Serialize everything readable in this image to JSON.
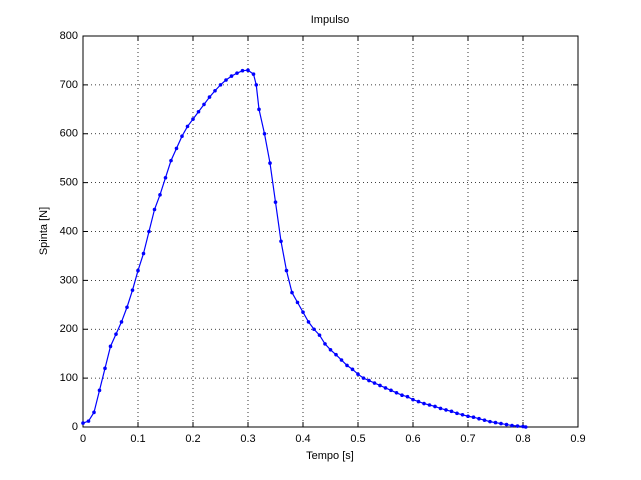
{
  "chart_data": {
    "type": "line",
    "title": "Impulso",
    "x_label": "Tempo [s]",
    "y_label": "Spinta [N]",
    "x": [
      0,
      0.01,
      0.02,
      0.03,
      0.04,
      0.05,
      0.06,
      0.07,
      0.08,
      0.09,
      0.1,
      0.11,
      0.12,
      0.13,
      0.14,
      0.15,
      0.16,
      0.17,
      0.18,
      0.19,
      0.2,
      0.21,
      0.22,
      0.23,
      0.24,
      0.25,
      0.26,
      0.27,
      0.28,
      0.29,
      0.3,
      0.31,
      0.315,
      0.32,
      0.33,
      0.34,
      0.35,
      0.36,
      0.37,
      0.38,
      0.39,
      0.4,
      0.41,
      0.42,
      0.43,
      0.44,
      0.45,
      0.46,
      0.47,
      0.48,
      0.49,
      0.5,
      0.51,
      0.52,
      0.53,
      0.54,
      0.55,
      0.56,
      0.57,
      0.58,
      0.59,
      0.6,
      0.61,
      0.62,
      0.63,
      0.64,
      0.65,
      0.66,
      0.67,
      0.68,
      0.69,
      0.7,
      0.71,
      0.72,
      0.73,
      0.74,
      0.75,
      0.76,
      0.77,
      0.78,
      0.79,
      0.8,
      0.805
    ],
    "series": [
      {
        "name": "Spinta",
        "color": "#0000ff",
        "values": [
          8,
          12,
          30,
          75,
          120,
          165,
          190,
          215,
          245,
          280,
          320,
          355,
          400,
          445,
          475,
          510,
          545,
          570,
          595,
          615,
          630,
          645,
          660,
          675,
          688,
          700,
          710,
          718,
          724,
          729,
          730,
          722,
          700,
          650,
          600,
          540,
          460,
          380,
          320,
          275,
          255,
          235,
          215,
          200,
          188,
          170,
          158,
          148,
          137,
          126,
          118,
          108,
          100,
          95,
          90,
          85,
          80,
          75,
          70,
          65,
          62,
          56,
          52,
          48,
          45,
          42,
          38,
          35,
          32,
          28,
          25,
          22,
          20,
          17,
          14,
          11,
          9,
          7,
          5,
          3,
          2,
          1,
          0
        ]
      }
    ],
    "xlim": [
      0,
      0.9
    ],
    "xticks": [
      0,
      0.1,
      0.2,
      0.3,
      0.4,
      0.5,
      0.6,
      0.7,
      0.8,
      0.9
    ],
    "ylim": [
      0,
      800
    ],
    "yticks": [
      0,
      100,
      200,
      300,
      400,
      500,
      600,
      700,
      800
    ],
    "grid": true
  }
}
